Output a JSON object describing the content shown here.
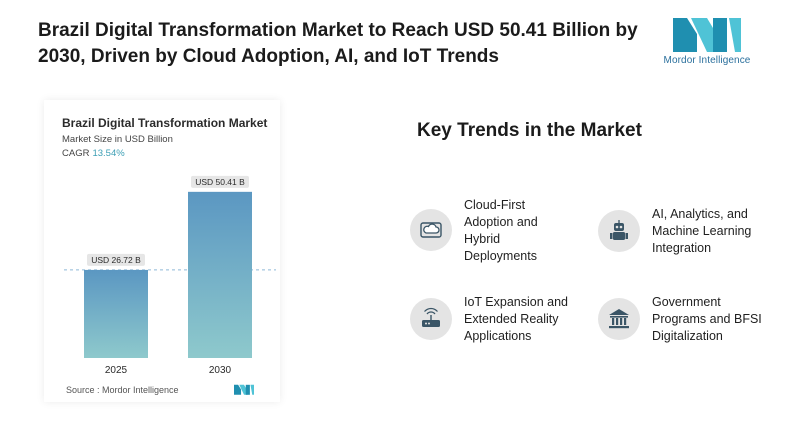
{
  "header": {
    "title": "Brazil Digital Transformation Market to Reach USD 50.41 Billion by 2030, Driven by Cloud Adoption, AI, and IoT Trends",
    "brand_name": "Mordor Intelligence",
    "brand_icon": "mordor-logo-icon"
  },
  "chart_data": {
    "type": "bar",
    "title": "Brazil Digital Transformation Market",
    "subtitle": "Market Size in USD Billion",
    "cagr_label": "CAGR",
    "cagr_value": "13.54%",
    "categories": [
      "2025",
      "2030"
    ],
    "values": [
      26.72,
      50.41
    ],
    "value_labels": [
      "USD 26.72 B",
      "USD 50.41 B"
    ],
    "ylim": [
      0,
      54
    ],
    "grid": false,
    "reference_line": "dashed line at 2025 value",
    "colors": {
      "bar_top": "#5b97c2",
      "bar_bottom": "#8ec9cc",
      "label_bg": "#e6e6e6",
      "dash": "#8fb9d6"
    },
    "source": "Source : Mordor Intelligence"
  },
  "trends": {
    "title": "Key Trends in the Market",
    "items": [
      {
        "id": "t1",
        "icon": "cloud-icon",
        "label": "Cloud-First Adoption and Hybrid Deployments"
      },
      {
        "id": "t2",
        "icon": "robot-icon",
        "label": "AI, Analytics, and Machine Learning Integration"
      },
      {
        "id": "t3",
        "icon": "router-icon",
        "label": "IoT Expansion and Extended Reality Applications"
      },
      {
        "id": "t4",
        "icon": "government-building-icon",
        "label": "Government Programs and BFSI Digitalization"
      }
    ]
  }
}
